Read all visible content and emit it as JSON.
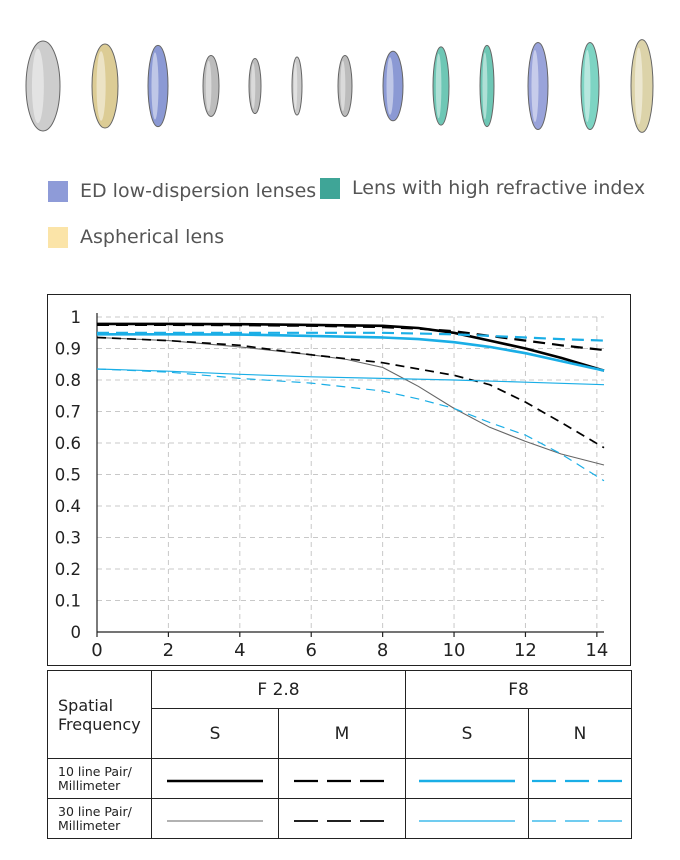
{
  "lens_elements": [
    {
      "name": "lens-element-1",
      "color": "#c8c8c8"
    },
    {
      "name": "lens-element-2",
      "color": "#d9c78a"
    },
    {
      "name": "lens-element-3",
      "color": "#7f8fd0"
    },
    {
      "name": "lens-element-4",
      "color": "#b5b5b5"
    },
    {
      "name": "lens-element-5",
      "color": "#b5b5b5"
    },
    {
      "name": "lens-element-6",
      "color": "#c4c4c4"
    },
    {
      "name": "lens-element-7",
      "color": "#b5b5b5"
    },
    {
      "name": "lens-element-8",
      "color": "#7f8fd0"
    },
    {
      "name": "lens-element-9",
      "color": "#5fc1ad"
    },
    {
      "name": "lens-element-10",
      "color": "#5fc1ad"
    },
    {
      "name": "lens-element-11",
      "color": "#8f9ad6"
    },
    {
      "name": "lens-element-12",
      "color": "#6fd0bd"
    },
    {
      "name": "lens-element-13",
      "color": "#d9cfa0"
    }
  ],
  "lens_legend": [
    {
      "label": "ED low-dispersion lenses",
      "color": "#8e9bd8"
    },
    {
      "label": "Lens with high refractive index",
      "color": "#3fa597"
    },
    {
      "label": "Aspherical lens",
      "color": "#fbe4a8"
    }
  ],
  "chart_data": {
    "type": "line",
    "title": "",
    "xlabel": "",
    "ylabel": "",
    "xlim": [
      0,
      14.2
    ],
    "ylim": [
      0,
      1
    ],
    "x_ticks": [
      0,
      2,
      4,
      6,
      8,
      10,
      12,
      14
    ],
    "y_ticks": [
      0,
      0.1,
      0.2,
      0.3,
      0.4,
      0.5,
      0.6,
      0.7,
      0.8,
      0.9,
      1
    ],
    "y_tick_labels": [
      "0",
      "0.1",
      "0.2",
      "0.3",
      "0.4",
      "0.5",
      "0.6",
      "0.7",
      "0.8",
      "0.9",
      "1"
    ],
    "grid": true,
    "series": [
      {
        "key": "f28_10_s",
        "color": "#000000",
        "style": "solid",
        "width": 2.6,
        "points": [
          [
            0,
            0.978
          ],
          [
            2,
            0.978
          ],
          [
            4,
            0.977
          ],
          [
            6,
            0.975
          ],
          [
            8,
            0.972
          ],
          [
            9,
            0.965
          ],
          [
            10,
            0.95
          ],
          [
            11,
            0.925
          ],
          [
            12,
            0.9
          ],
          [
            13,
            0.87
          ],
          [
            14.2,
            0.83
          ]
        ]
      },
      {
        "key": "f28_10_m",
        "color": "#000000",
        "style": "dashed",
        "width": 2.2,
        "points": [
          [
            0,
            0.975
          ],
          [
            2,
            0.975
          ],
          [
            4,
            0.974
          ],
          [
            6,
            0.972
          ],
          [
            8,
            0.968
          ],
          [
            9,
            0.963
          ],
          [
            10,
            0.955
          ],
          [
            11,
            0.94
          ],
          [
            12,
            0.925
          ],
          [
            13,
            0.91
          ],
          [
            14.2,
            0.895
          ]
        ]
      },
      {
        "key": "f28_30_s",
        "color": "#666666",
        "style": "solid",
        "width": 1.1,
        "points": [
          [
            0,
            0.935
          ],
          [
            2,
            0.925
          ],
          [
            4,
            0.905
          ],
          [
            6,
            0.88
          ],
          [
            7,
            0.865
          ],
          [
            8,
            0.84
          ],
          [
            9,
            0.78
          ],
          [
            10,
            0.71
          ],
          [
            11,
            0.65
          ],
          [
            12,
            0.605
          ],
          [
            13,
            0.565
          ],
          [
            14.2,
            0.53
          ]
        ]
      },
      {
        "key": "f28_30_m",
        "color": "#000000",
        "style": "dashed",
        "width": 1.7,
        "points": [
          [
            0,
            0.935
          ],
          [
            2,
            0.925
          ],
          [
            4,
            0.91
          ],
          [
            6,
            0.88
          ],
          [
            8,
            0.855
          ],
          [
            9,
            0.835
          ],
          [
            10,
            0.815
          ],
          [
            11,
            0.785
          ],
          [
            12,
            0.73
          ],
          [
            13,
            0.665
          ],
          [
            14.2,
            0.585
          ]
        ]
      },
      {
        "key": "f8_10_s",
        "color": "#1aaee6",
        "style": "solid",
        "width": 2.6,
        "points": [
          [
            0,
            0.945
          ],
          [
            2,
            0.945
          ],
          [
            4,
            0.944
          ],
          [
            6,
            0.94
          ],
          [
            8,
            0.935
          ],
          [
            9,
            0.93
          ],
          [
            10,
            0.92
          ],
          [
            11,
            0.905
          ],
          [
            12,
            0.885
          ],
          [
            13,
            0.86
          ],
          [
            14.2,
            0.83
          ]
        ]
      },
      {
        "key": "f8_10_n",
        "color": "#1aaee6",
        "style": "dashed",
        "width": 2.2,
        "points": [
          [
            0,
            0.95
          ],
          [
            2,
            0.95
          ],
          [
            4,
            0.95
          ],
          [
            6,
            0.95
          ],
          [
            8,
            0.95
          ],
          [
            10,
            0.945
          ],
          [
            11,
            0.94
          ],
          [
            12,
            0.935
          ],
          [
            13,
            0.93
          ],
          [
            14.2,
            0.925
          ]
        ]
      },
      {
        "key": "f8_30_s",
        "color": "#1aaee6",
        "style": "solid",
        "width": 1.2,
        "points": [
          [
            0,
            0.835
          ],
          [
            2,
            0.828
          ],
          [
            4,
            0.818
          ],
          [
            6,
            0.81
          ],
          [
            8,
            0.805
          ],
          [
            10,
            0.8
          ],
          [
            12,
            0.793
          ],
          [
            14.2,
            0.785
          ]
        ]
      },
      {
        "key": "f8_30_n",
        "color": "#1aaee6",
        "style": "dashed",
        "width": 1.2,
        "points": [
          [
            0,
            0.835
          ],
          [
            2,
            0.825
          ],
          [
            4,
            0.805
          ],
          [
            6,
            0.79
          ],
          [
            8,
            0.765
          ],
          [
            9,
            0.74
          ],
          [
            10,
            0.71
          ],
          [
            11,
            0.665
          ],
          [
            12,
            0.625
          ],
          [
            13,
            0.565
          ],
          [
            14.2,
            0.48
          ]
        ]
      }
    ]
  },
  "legend_table": {
    "header_label": "Spatial Frequency",
    "group_f28": "F 2.8",
    "group_f8": "F8",
    "sub_f28_a": "S",
    "sub_f28_b": "M",
    "sub_f8_a": "S",
    "sub_f8_b": "N",
    "row_10": "10 line Pair/ Millimeter",
    "row_30": "30 line Pair/ Millimeter"
  }
}
